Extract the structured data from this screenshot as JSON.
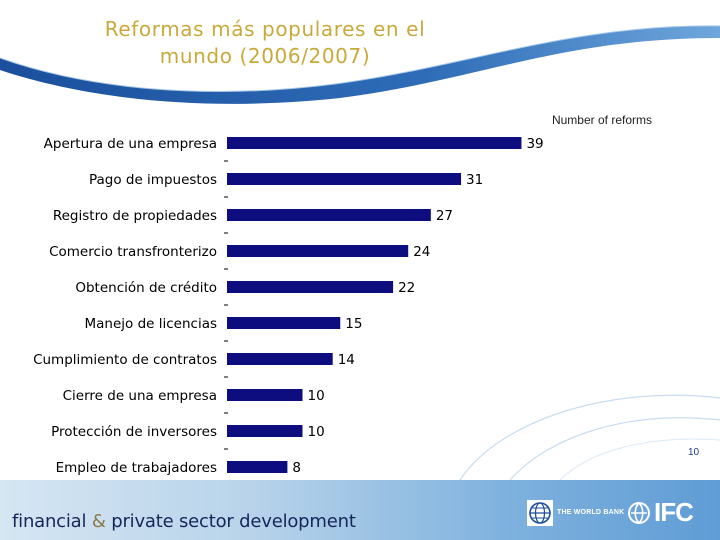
{
  "slide": {
    "title_line1": "Reformas más populares en el",
    "title_line2": "mundo (2006/2007)",
    "page_number": "10"
  },
  "footer": {
    "tagline_part1": "financial",
    "tagline_amp": "&",
    "tagline_part2": "private sector development",
    "worldbank_label": "THE WORLD BANK",
    "ifc_label": "IFC"
  },
  "colors": {
    "bar": "#0d0d80",
    "title": "#c8a93a",
    "header_blue": "#1b4f9c",
    "footer_text": "#16265a"
  },
  "chart_data": {
    "type": "bar",
    "orientation": "horizontal",
    "units_label": "Number of reforms",
    "categories": [
      "Apertura de una empresa",
      "Pago de impuestos",
      "Registro de propiedades",
      "Comercio transfronterizo",
      "Obtención de crédito",
      "Manejo de licencias",
      "Cumplimiento de contratos",
      "Cierre de una empresa",
      "Protección de inversores",
      "Empleo de trabajadores"
    ],
    "values": [
      39,
      31,
      27,
      24,
      22,
      15,
      14,
      10,
      10,
      8
    ],
    "xlim": [
      0,
      40
    ]
  }
}
